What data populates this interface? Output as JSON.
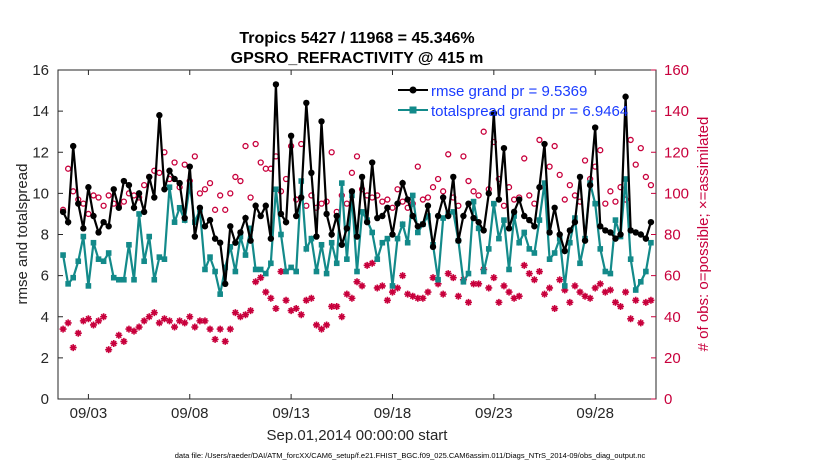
{
  "chart_data": {
    "type": "line",
    "title_line1": "Tropics 5427 / 11968 = 45.346%",
    "title_line2": "GPSRO_REFRACTIVITY @ 415 m",
    "xlabel": "Sep.01,2014 00:00:00 start",
    "ylabel": "rmse and totalspread",
    "ylabel_right": "# of obs: o=possible; ×=assimilated",
    "footer": "data file: /Users/raeder/DAI/ATM_forcXX/CAM6_setup/f.e21.FHIST_BGC.f09_025.CAM6assim.011/Diags_NTrS_2014-09/obs_diag_output.nc",
    "xlim": [
      1.5,
      31.0
    ],
    "ylim": [
      0,
      16
    ],
    "ylim_right": [
      0,
      160
    ],
    "x_ticks": [
      3,
      8,
      13,
      18,
      23,
      28
    ],
    "x_tick_labels": [
      "09/03",
      "09/08",
      "09/13",
      "09/18",
      "09/23",
      "09/28"
    ],
    "y_ticks": [
      0,
      2,
      4,
      6,
      8,
      10,
      12,
      14,
      16
    ],
    "y_tick_labels": [
      "0",
      "2",
      "4",
      "6",
      "8",
      "10",
      "12",
      "14",
      "16"
    ],
    "y_ticks_right": [
      0,
      20,
      40,
      60,
      80,
      100,
      120,
      140,
      160
    ],
    "y_tick_labels_right": [
      "0",
      "20",
      "40",
      "60",
      "80",
      "100",
      "120",
      "140",
      "160"
    ],
    "series": [
      {
        "name": "rmse grand pr = 9.5369",
        "color": "#000000",
        "x": [
          1.75,
          2.0,
          2.25,
          2.5,
          2.75,
          3.0,
          3.25,
          3.5,
          3.75,
          4.0,
          4.25,
          4.5,
          4.75,
          5.0,
          5.25,
          5.5,
          5.75,
          6.0,
          6.25,
          6.5,
          6.75,
          7.0,
          7.25,
          7.5,
          7.75,
          8.0,
          8.25,
          8.5,
          8.75,
          9.0,
          9.25,
          9.5,
          9.75,
          10.0,
          10.25,
          10.5,
          10.75,
          11.0,
          11.25,
          11.5,
          11.75,
          12.0,
          12.25,
          12.5,
          12.75,
          13.0,
          13.25,
          13.5,
          13.75,
          14.0,
          14.25,
          14.5,
          14.75,
          15.0,
          15.25,
          15.5,
          15.75,
          16.0,
          16.25,
          16.5,
          16.75,
          17.0,
          17.25,
          17.5,
          17.75,
          18.0,
          18.25,
          18.5,
          18.75,
          19.0,
          19.25,
          19.5,
          19.75,
          20.0,
          20.25,
          20.5,
          20.75,
          21.0,
          21.25,
          21.5,
          21.75,
          22.0,
          22.25,
          22.5,
          22.75,
          23.0,
          23.25,
          23.5,
          23.75,
          24.0,
          24.25,
          24.5,
          24.75,
          25.0,
          25.25,
          25.5,
          25.75,
          26.0,
          26.25,
          26.5,
          26.75,
          27.0,
          27.25,
          27.5,
          27.75,
          28.0,
          28.25,
          28.5,
          28.75,
          29.0,
          29.25,
          29.5,
          29.75,
          30.0,
          30.25,
          30.5,
          30.75
        ],
        "values": [
          9.1,
          8.6,
          12.3,
          9.5,
          8.3,
          10.3,
          8.9,
          8.1,
          8.6,
          8.4,
          10.2,
          9.3,
          10.6,
          10.4,
          9.3,
          10.0,
          9.1,
          10.8,
          9.8,
          13.8,
          10.2,
          11.1,
          10.7,
          10.5,
          8.8,
          11.3,
          7.9,
          9.3,
          8.4,
          8.7,
          7.8,
          7.6,
          5.6,
          8.4,
          7.6,
          8.1,
          8.8,
          7.7,
          9.4,
          8.9,
          9.4,
          7.8,
          15.3,
          9.0,
          8.6,
          12.8,
          8.9,
          9.8,
          14.4,
          11.0,
          7.9,
          13.5,
          9.0,
          8.0,
          8.9,
          7.5,
          8.3,
          10.1,
          7.9,
          10.8,
          8.6,
          11.5,
          8.8,
          8.9,
          9.3,
          8.0,
          9.5,
          10.5,
          9.7,
          8.9,
          8.4,
          8.5,
          9.4,
          7.4,
          8.9,
          9.8,
          8.9,
          10.8,
          7.7,
          8.9,
          9.5,
          8.8,
          8.6,
          8.2,
          10.0,
          13.9,
          9.7,
          12.2,
          8.3,
          9.1,
          9.7,
          8.9,
          8.7,
          8.4,
          10.3,
          12.4,
          8.1,
          9.3,
          8.0,
          7.2,
          8.2,
          8.6,
          10.8,
          7.7,
          10.4,
          13.2,
          8.4,
          8.2,
          8.1,
          7.8,
          8.0,
          14.7,
          8.2,
          8.1,
          8.0,
          7.8,
          8.6
        ],
        "marker": "filled-circle"
      },
      {
        "name": "totalspread grand pr = 6.9464",
        "color": "#138a8a",
        "values": [
          7.0,
          5.6,
          5.9,
          6.7,
          7.9,
          5.5,
          7.6,
          6.8,
          6.7,
          7.1,
          5.9,
          5.8,
          5.8,
          7.5,
          5.8,
          9.0,
          6.7,
          7.9,
          5.8,
          6.9,
          6.8,
          10.3,
          8.6,
          9.3,
          8.7,
          10.4,
          8.6,
          9.2,
          6.3,
          6.9,
          6.2,
          5.1,
          6.4,
          7.4,
          6.2,
          7.9,
          7.0,
          8.3,
          6.3,
          6.3,
          6.1,
          6.6,
          10.2,
          8.0,
          6.2,
          6.4,
          6.2,
          10.6,
          7.3,
          7.8,
          6.2,
          7.5,
          6.1,
          7.6,
          6.6,
          10.5,
          6.8,
          9.9,
          6.2,
          9.1,
          8.7,
          8.1,
          6.8,
          7.6,
          7.8,
          5.5,
          7.8,
          8.5,
          7.6,
          9.9,
          8.1,
          8.5,
          8.9,
          7.5,
          5.8,
          8.8,
          9.0,
          9.1,
          7.7,
          5.7,
          6.1,
          9.6,
          8.3,
          6.2,
          7.3,
          9.5,
          7.8,
          8.7,
          6.3,
          8.9,
          7.6,
          8.1,
          7.3,
          7.1,
          8.7,
          10.5,
          6.8,
          7.1,
          7.8,
          5.5,
          7.6,
          8.8,
          6.6,
          7.8,
          10.5,
          9.5,
          7.3,
          6.2,
          6.1,
          8.7,
          7.9,
          10.7,
          6.8,
          5.3,
          5.7,
          6.2,
          7.6
        ],
        "marker": "filled-square"
      },
      {
        "name": "possible obs count",
        "axis": "right",
        "color": "#c8003c",
        "marker": "open-circle",
        "values": [
          92,
          112,
          101,
          97,
          95,
          90,
          99,
          98,
          94,
          99,
          95,
          94,
          96,
          100,
          99,
          98,
          104,
          108,
          111,
          110,
          120,
          107,
          115,
          103,
          114,
          106,
          118,
          100,
          102,
          105,
          92,
          99,
          92,
          100,
          108,
          106,
          123,
          98,
          124,
          115,
          112,
          112,
          118,
          101,
          107,
          123,
          97,
          124,
          94,
          99,
          93,
          95,
          96,
          120,
          91,
          99,
          95,
          110,
          118,
          102,
          99,
          98,
          99,
          96,
          97,
          93,
          102,
          96,
          93,
          95,
          113,
          97,
          98,
          103,
          107,
          101,
          119,
          98,
          94,
          118,
          106,
          101,
          99,
          130,
          102,
          125,
          107,
          94,
          103,
          97,
          98,
          117,
          99,
          95,
          126,
          103,
          113,
          123,
          109,
          97,
          104,
          99,
          96,
          116,
          107,
          113,
          121,
          95,
          101,
          96,
          103,
          97,
          126,
          114,
          122,
          108,
          104
        ],
        "marker_note": "open circles"
      },
      {
        "name": "assimilated obs count",
        "axis": "right",
        "color": "#c8003c",
        "marker": "star",
        "values": [
          34,
          37,
          25,
          32,
          38,
          39,
          36,
          38,
          40,
          24,
          27,
          31,
          28,
          34,
          33,
          35,
          38,
          40,
          42,
          37,
          39,
          38,
          35,
          38,
          37,
          40,
          35,
          38,
          38,
          34,
          29,
          34,
          28,
          34,
          42,
          40,
          41,
          43,
          57,
          59,
          52,
          49,
          44,
          62,
          48,
          43,
          44,
          41,
          48,
          49,
          36,
          34,
          36,
          45,
          45,
          40,
          51,
          49,
          57,
          55,
          65,
          66,
          54,
          55,
          48,
          52,
          54,
          60,
          51,
          50,
          49,
          49,
          52,
          59,
          56,
          51,
          61,
          59,
          50,
          58,
          47,
          56,
          56,
          63,
          54,
          59,
          47,
          55,
          52,
          49,
          50,
          65,
          61,
          58,
          62,
          51,
          54,
          44,
          58,
          53,
          47,
          55,
          52,
          50,
          49,
          54,
          56,
          52,
          53,
          47,
          45,
          52,
          39,
          48,
          37,
          47,
          48
        ],
        "marker_note": "asterisk / x markers"
      }
    ],
    "legend_position": "top-right",
    "grid": false
  }
}
